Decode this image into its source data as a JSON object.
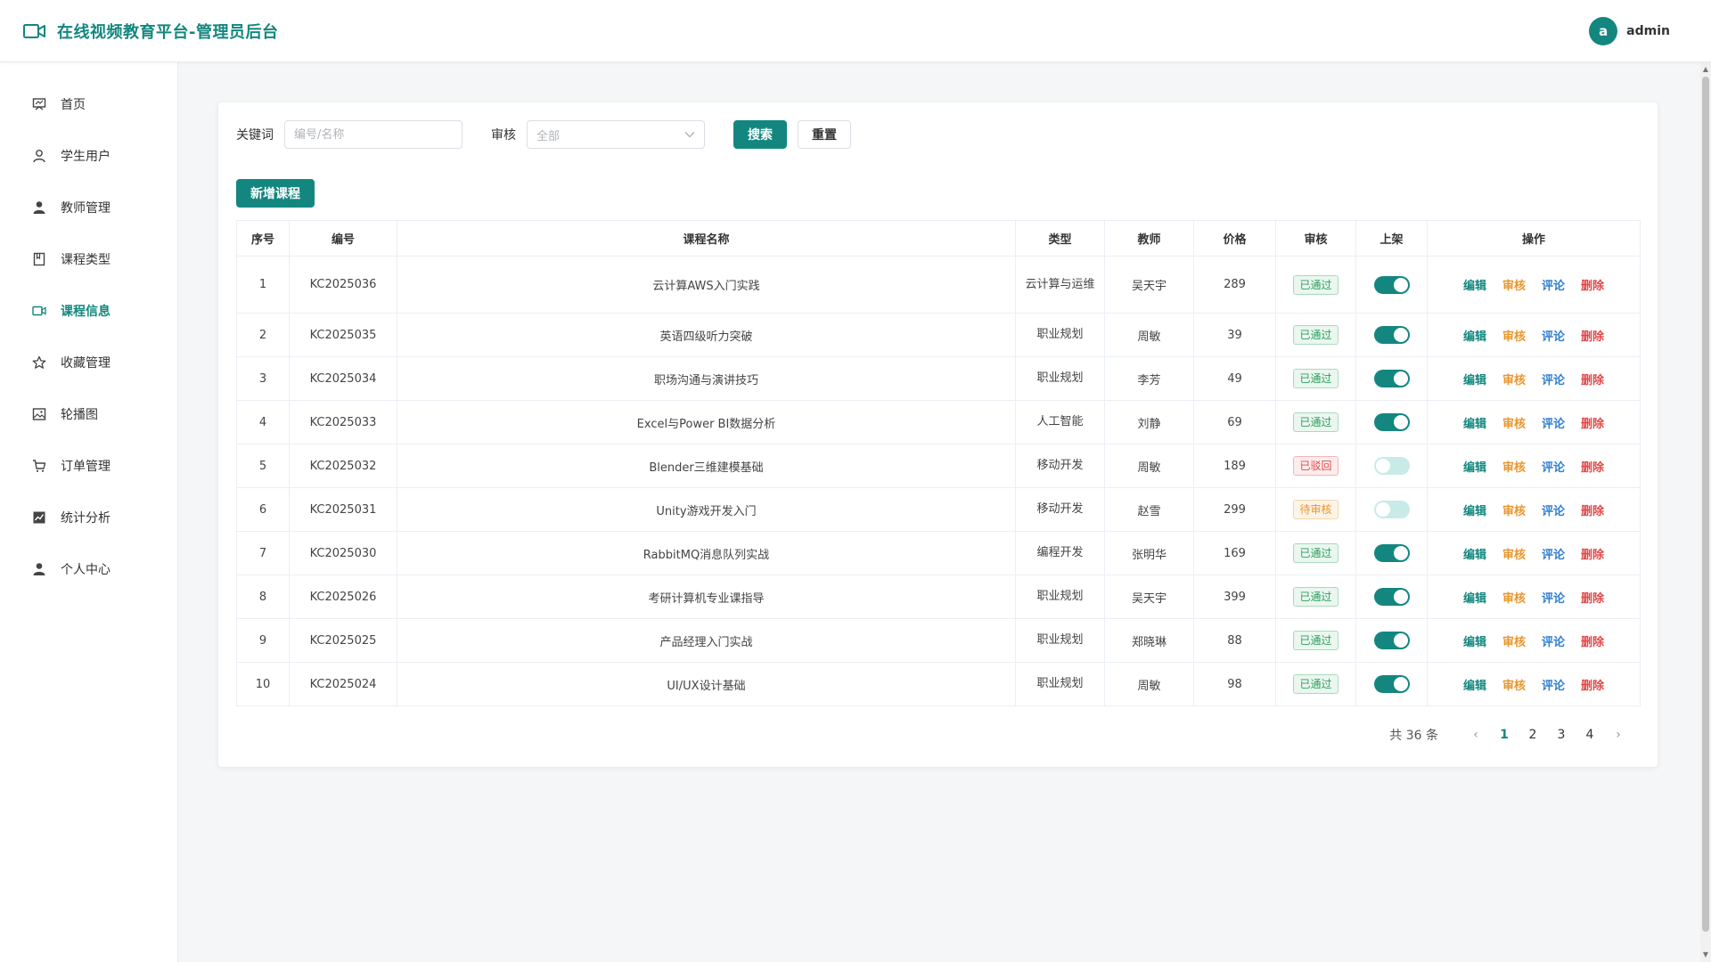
{
  "header": {
    "title": "在线视频教育平台-管理员后台",
    "avatar_letter": "a",
    "username": "admin"
  },
  "sidebar": {
    "items": [
      {
        "label": "首页",
        "icon": "dashboard-icon",
        "active": false
      },
      {
        "label": "学生用户",
        "icon": "user-outline-icon",
        "active": false
      },
      {
        "label": "教师管理",
        "icon": "user-solid-icon",
        "active": false
      },
      {
        "label": "课程类型",
        "icon": "book-icon",
        "active": false
      },
      {
        "label": "课程信息",
        "icon": "video-icon",
        "active": true
      },
      {
        "label": "收藏管理",
        "icon": "star-icon",
        "active": false
      },
      {
        "label": "轮播图",
        "icon": "picture-icon",
        "active": false
      },
      {
        "label": "订单管理",
        "icon": "cart-icon",
        "active": false
      },
      {
        "label": "统计分析",
        "icon": "chart-icon",
        "active": false
      },
      {
        "label": "个人中心",
        "icon": "person-icon",
        "active": false
      }
    ]
  },
  "filters": {
    "keyword_label": "关键词",
    "keyword_placeholder": "编号/名称",
    "keyword_value": "",
    "audit_label": "审核",
    "audit_value": "全部",
    "search_label": "搜索",
    "reset_label": "重置"
  },
  "add_button_label": "新增课程",
  "table": {
    "columns": [
      "序号",
      "编号",
      "课程名称",
      "类型",
      "教师",
      "价格",
      "审核",
      "上架",
      "操作"
    ],
    "actions": [
      "编辑",
      "审核",
      "评论",
      "删除"
    ],
    "rows": [
      {
        "index": "1",
        "code": "KC2025036",
        "name": "云计算AWS入门实践",
        "type": "云计算与运维",
        "teacher": "吴天宇",
        "price": "289",
        "audit": "已通过",
        "listed": true
      },
      {
        "index": "2",
        "code": "KC2025035",
        "name": "英语四级听力突破",
        "type": "职业规划",
        "teacher": "周敏",
        "price": "39",
        "audit": "已通过",
        "listed": true
      },
      {
        "index": "3",
        "code": "KC2025034",
        "name": "职场沟通与演讲技巧",
        "type": "职业规划",
        "teacher": "李芳",
        "price": "49",
        "audit": "已通过",
        "listed": true
      },
      {
        "index": "4",
        "code": "KC2025033",
        "name": "Excel与Power BI数据分析",
        "type": "人工智能",
        "teacher": "刘静",
        "price": "69",
        "audit": "已通过",
        "listed": true
      },
      {
        "index": "5",
        "code": "KC2025032",
        "name": "Blender三维建模基础",
        "type": "移动开发",
        "teacher": "周敏",
        "price": "189",
        "audit": "已驳回",
        "listed": false
      },
      {
        "index": "6",
        "code": "KC2025031",
        "name": "Unity游戏开发入门",
        "type": "移动开发",
        "teacher": "赵雪",
        "price": "299",
        "audit": "待审核",
        "listed": false
      },
      {
        "index": "7",
        "code": "KC2025030",
        "name": "RabbitMQ消息队列实战",
        "type": "编程开发",
        "teacher": "张明华",
        "price": "169",
        "audit": "已通过",
        "listed": true
      },
      {
        "index": "8",
        "code": "KC2025026",
        "name": "考研计算机专业课指导",
        "type": "职业规划",
        "teacher": "吴天宇",
        "price": "399",
        "audit": "已通过",
        "listed": true
      },
      {
        "index": "9",
        "code": "KC2025025",
        "name": "产品经理入门实战",
        "type": "职业规划",
        "teacher": "郑晓琳",
        "price": "88",
        "audit": "已通过",
        "listed": true
      },
      {
        "index": "10",
        "code": "KC2025024",
        "name": "UI/UX设计基础",
        "type": "职业规划",
        "teacher": "周敏",
        "price": "98",
        "audit": "已通过",
        "listed": true
      }
    ]
  },
  "pagination": {
    "total_text": "共 36 条",
    "pages": [
      "1",
      "2",
      "3",
      "4"
    ],
    "current": "1"
  },
  "colors": {
    "primary": "#13877f",
    "audit_pass": "#2e9e5e",
    "audit_reject": "#e04848",
    "audit_pending": "#e8962e",
    "action_edit": "#13877f",
    "action_audit": "#e8962e",
    "action_comment": "#2f7fd1",
    "action_delete": "#e04848"
  }
}
